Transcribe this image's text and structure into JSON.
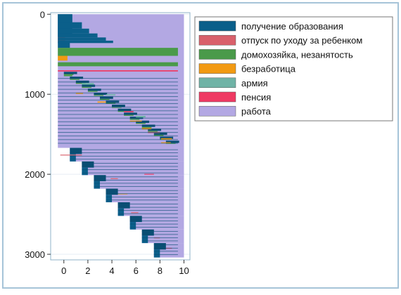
{
  "chart_data": {
    "type": "sequence-index",
    "ylim": [
      3070,
      -20
    ],
    "xlim": [
      -1.1,
      10.5
    ],
    "x_ticks": [
      "0",
      "2",
      "4",
      "6",
      "8",
      "10"
    ],
    "y_ticks": [
      "0",
      "1000",
      "2000",
      "3000"
    ],
    "grid": true,
    "legend_position": "top-right",
    "legend": [
      {
        "key": "edu",
        "label": "получение образования",
        "color": "#0b5f8a"
      },
      {
        "key": "leave",
        "label": "отпуск по уходу за ребенком",
        "color": "#d9606b"
      },
      {
        "key": "home",
        "label": "домохозяйка, незанятость",
        "color": "#4a9a4a"
      },
      {
        "key": "unemp",
        "label": "безработица",
        "color": "#f29a12"
      },
      {
        "key": "army",
        "label": "армия",
        "color": "#6fb3a6"
      },
      {
        "key": "retire",
        "label": "пенсия",
        "color": "#ef3a63"
      },
      {
        "key": "work",
        "label": "работа",
        "color": "#b3a8e3"
      }
    ],
    "colors": {
      "frame": "#a6c4d8",
      "plot_bg": "#ffffff",
      "outer_bg": "#ffffff",
      "dark_edu": "#0a4e73"
    },
    "cohorts": [
      {
        "start": 0,
        "end": 1670,
        "len": 10
      },
      {
        "start": 1670,
        "end": 1840,
        "len": 9
      },
      {
        "start": 1840,
        "end": 2010,
        "len": 8
      },
      {
        "start": 2010,
        "end": 2180,
        "len": 7
      },
      {
        "start": 2180,
        "end": 2350,
        "len": 6
      },
      {
        "start": 2350,
        "end": 2520,
        "len": 5
      },
      {
        "start": 2520,
        "end": 2690,
        "len": 4
      },
      {
        "start": 2690,
        "end": 2860,
        "len": 3
      },
      {
        "start": 2860,
        "end": 3040,
        "len": 2
      }
    ],
    "top_block": [
      {
        "y0": 0,
        "y1": 280,
        "x1": 1.2,
        "state": "edu"
      },
      {
        "y0": 280,
        "y1": 350,
        "x1": 0.6,
        "state": "leave"
      },
      {
        "y0": 350,
        "y1": 420,
        "x1": 1.0,
        "state": "edu"
      },
      {
        "y0": 420,
        "y1": 520,
        "x1": 10,
        "state": "home"
      },
      {
        "y0": 520,
        "y1": 580,
        "x1": 0.8,
        "state": "unemp"
      },
      {
        "y0": 600,
        "y1": 650,
        "x1": 10,
        "state": "home"
      },
      {
        "y0": 700,
        "y1": 715,
        "x1": 10,
        "state": "retire"
      }
    ]
  }
}
